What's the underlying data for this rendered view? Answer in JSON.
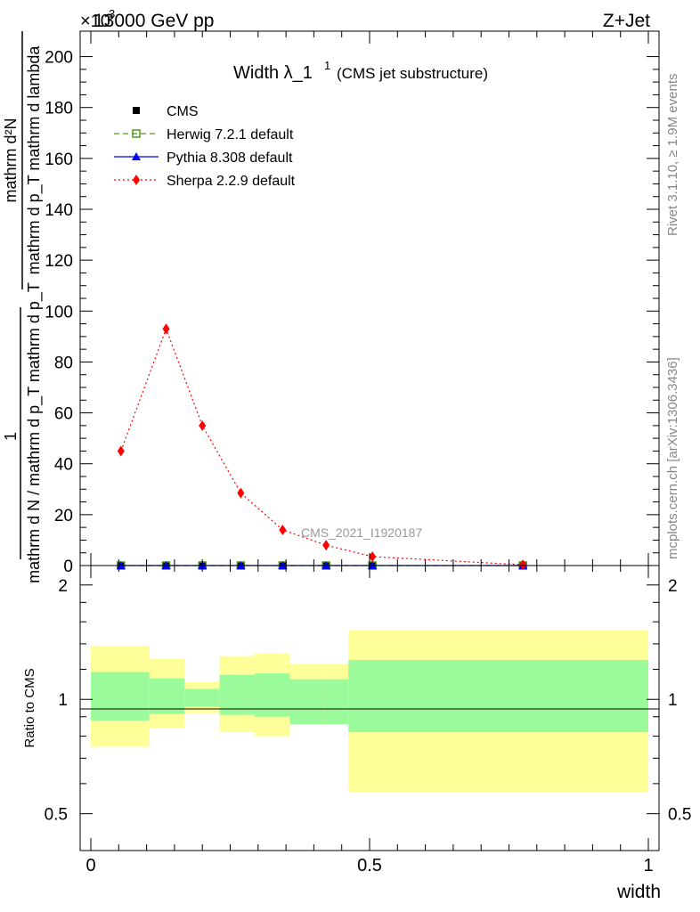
{
  "header": {
    "energy_label": "13000 GeV pp",
    "process_label": "Z+Jet",
    "exponent_label": "×10",
    "exponent_value": "3"
  },
  "side_labels": {
    "rivet": "Rivet 3.1.10, ≥ 1.9M events",
    "mcplots": "mcplots.cern.ch [arXiv:1306.3436]"
  },
  "main_plot": {
    "title": "Width λ_1",
    "title_sup": "1",
    "title_note": "(CMS jet substructure)",
    "ylabel_numerator_lines": [
      "mathrm d²N",
      "mathrm d p_T mathrm d lambda"
    ],
    "ylabel_denominator": "mathrm d N / mathrm d p_T mathrm d p_T",
    "ylabel_one": "1",
    "watermark": "CMS_2021_I1920187"
  },
  "ratio_plot": {
    "ylabel": "Ratio to CMS"
  },
  "legend": [
    {
      "name": "CMS",
      "color": "#000000",
      "marker": "square-filled",
      "line": "none"
    },
    {
      "name": "Herwig 7.2.1 default",
      "color": "#4a9a1e",
      "marker": "square-open",
      "line": "dashed"
    },
    {
      "name": "Pythia 8.308 default",
      "color": "#0000ff",
      "marker": "triangle",
      "line": "solid"
    },
    {
      "name": "Sherpa 2.2.9 default",
      "color": "#ff0000",
      "marker": "diamond",
      "line": "dotted"
    }
  ],
  "chart_data": {
    "type": "line",
    "xlabel": "width",
    "ylabel": "1/(dN/dp_T) d²N/(dp_T dλ)",
    "x_range": [
      0,
      1
    ],
    "y_range": [
      0,
      210
    ],
    "y_multiplier": "×10^3",
    "y_ticks": [
      0,
      20,
      40,
      60,
      80,
      100,
      120,
      140,
      160,
      180,
      200
    ],
    "x_ticks": [
      0,
      0.5,
      1
    ],
    "x_tick_labels": [
      "0",
      "0.5",
      "1"
    ],
    "bin_edges": [
      0,
      0.105,
      0.168,
      0.231,
      0.294,
      0.357,
      0.42,
      0.462,
      1.0
    ],
    "x": [
      0.054,
      0.135,
      0.2,
      0.269,
      0.344,
      0.422,
      0.505,
      0.775
    ],
    "series": [
      {
        "name": "CMS",
        "values": [
          0,
          0,
          0,
          0,
          0,
          0,
          0,
          0
        ]
      },
      {
        "name": "Herwig 7.2.1 default",
        "values": [
          0,
          0,
          0,
          0,
          0,
          0,
          0,
          0
        ]
      },
      {
        "name": "Pythia 8.308 default",
        "values": [
          0,
          0,
          0,
          0,
          0,
          0,
          0,
          0
        ]
      },
      {
        "name": "Sherpa 2.2.9 default",
        "values": [
          45,
          93,
          55,
          28.5,
          14,
          8,
          3.5,
          0.3
        ]
      }
    ],
    "ratio": {
      "y_range": [
        0.4,
        2.25
      ],
      "y_scale": "log",
      "y_ticks": [
        0.5,
        1,
        2
      ],
      "y_tick_labels": [
        "0.5",
        "1",
        "2"
      ],
      "bins": [
        {
          "lo": 0.0,
          "hi": 0.105,
          "inner": [
            0.88,
            1.18
          ],
          "outer": [
            0.75,
            1.38
          ]
        },
        {
          "lo": 0.105,
          "hi": 0.168,
          "inner": [
            0.915,
            1.135
          ],
          "outer": [
            0.84,
            1.28
          ]
        },
        {
          "lo": 0.168,
          "hi": 0.231,
          "inner": [
            0.955,
            1.065
          ],
          "outer": [
            0.92,
            1.11
          ]
        },
        {
          "lo": 0.231,
          "hi": 0.294,
          "inner": [
            0.91,
            1.16
          ],
          "outer": [
            0.82,
            1.3
          ]
        },
        {
          "lo": 0.294,
          "hi": 0.357,
          "inner": [
            0.9,
            1.17
          ],
          "outer": [
            0.8,
            1.32
          ]
        },
        {
          "lo": 0.357,
          "hi": 0.42,
          "inner": [
            0.86,
            1.13
          ],
          "outer": [
            0.86,
            1.24
          ]
        },
        {
          "lo": 0.42,
          "hi": 0.462,
          "inner": [
            0.86,
            1.13
          ],
          "outer": [
            0.86,
            1.24
          ]
        },
        {
          "lo": 0.462,
          "hi": 1.0,
          "inner": [
            0.82,
            1.27
          ],
          "outer": [
            0.57,
            1.52
          ]
        }
      ],
      "inner_color": "#9bfb9b",
      "outer_color": "#ffff99"
    }
  }
}
